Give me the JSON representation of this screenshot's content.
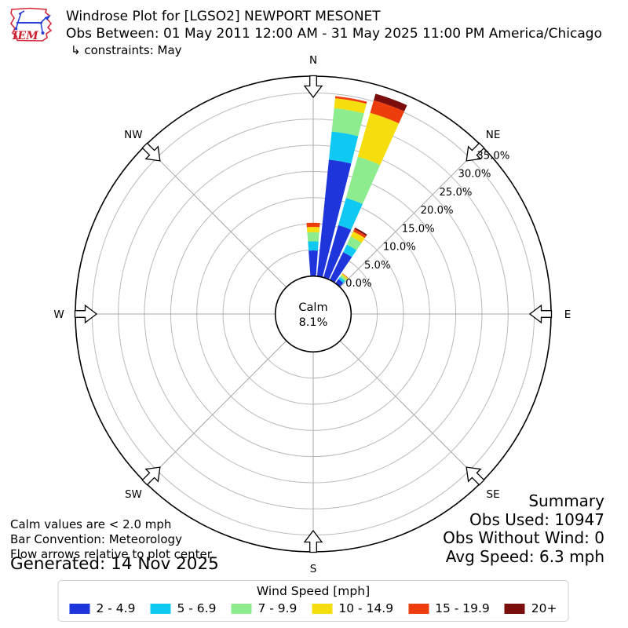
{
  "header": {
    "title": "Windrose Plot for [LGSO2] NEWPORT MESONET",
    "subtitle": "Obs Between: 01 May 2011 12:00 AM - 31 May 2025 11:00 PM America/Chicago",
    "constraints": "↳ constraints: May",
    "logo_text": "IEM"
  },
  "compass": [
    "N",
    "NE",
    "E",
    "SE",
    "S",
    "SW",
    "W",
    "NW"
  ],
  "center": {
    "line1": "Calm",
    "line2": "8.1%"
  },
  "summary": {
    "title": "Summary",
    "obs_used": "Obs Used: 10947",
    "obs_without_wind": "Obs Without Wind: 0",
    "avg_speed": "Avg Speed: 6.3 mph"
  },
  "notes": {
    "line1": "Calm values are < 2.0 mph",
    "line2": "Bar Convention: Meteorology",
    "line3": "Flow arrows relative to plot center.",
    "generated": "Generated: 14 Nov 2025"
  },
  "legend": {
    "title": "Wind Speed [mph]"
  },
  "chart_data": {
    "type": "windrose",
    "units": "mph",
    "calm_pct": 8.1,
    "ring_ticks_pct": [
      0,
      5,
      10,
      15,
      20,
      25,
      30,
      35
    ],
    "speed_bins": [
      {
        "label": "2 - 4.9",
        "color": "#1f35dc"
      },
      {
        "label": "5 - 6.9",
        "color": "#0fc9f2"
      },
      {
        "label": "7 - 9.9",
        "color": "#8dec8d"
      },
      {
        "label": "10 - 14.9",
        "color": "#f5dd0e"
      },
      {
        "label": "15 - 19.9",
        "color": "#ee3d0d"
      },
      {
        "label": "20+",
        "color": "#7c0d0d"
      }
    ],
    "directions": [
      {
        "azimuth_deg": 0,
        "values_pct": [
          4.9,
          1.75,
          1.75,
          1.0,
          0.8,
          0
        ]
      },
      {
        "azimuth_deg": 10,
        "values_pct": [
          22.4,
          5.4,
          4.5,
          1.9,
          0.4,
          0
        ]
      },
      {
        "azimuth_deg": 20,
        "values_pct": [
          10.4,
          5.4,
          8.2,
          8.7,
          2.5,
          1.3
        ]
      },
      {
        "azimuth_deg": 30,
        "values_pct": [
          5.9,
          1.6,
          1.7,
          1.1,
          0.5,
          0.3
        ]
      },
      {
        "azimuth_deg": 40,
        "values_pct": [
          1.0,
          0.5,
          0.45,
          0.3,
          0.1,
          0
        ]
      }
    ],
    "layout": {
      "bar_width_deg": 8.4,
      "tick_label_azimuth_deg": 45.8,
      "grid": "on",
      "legend_position": "bottom"
    }
  }
}
